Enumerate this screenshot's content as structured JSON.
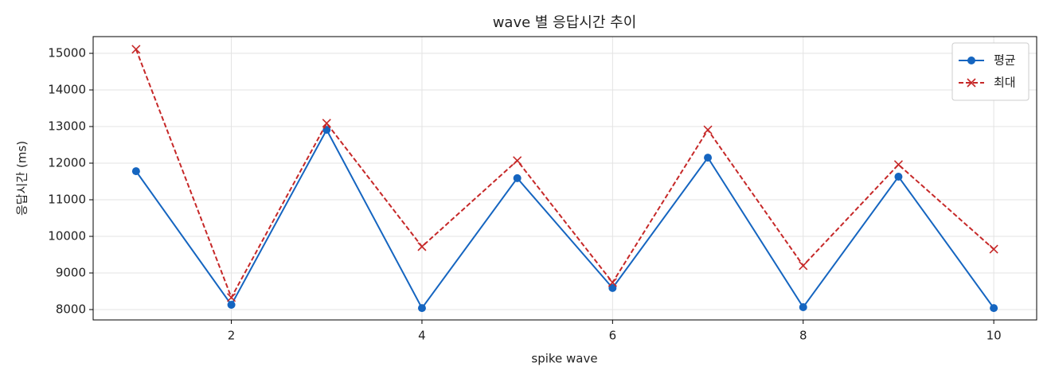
{
  "chart_data": {
    "type": "line",
    "title": "wave 별 응답시간 추이",
    "x_label": "spike wave",
    "y_label": "응답시간 (ms)",
    "x": [
      1,
      2,
      3,
      4,
      5,
      6,
      7,
      8,
      9,
      10
    ],
    "series": [
      {
        "name": "평균",
        "color": "#1565c0",
        "marker": "o",
        "linestyle": "solid",
        "values": [
          11780,
          8130,
          12910,
          8040,
          11590,
          8590,
          12150,
          8065,
          11630,
          8040
        ]
      },
      {
        "name": "최대",
        "color": "#c62828",
        "marker": "x",
        "linestyle": "dashed",
        "values": [
          15110,
          8330,
          13090,
          9720,
          12070,
          8740,
          12910,
          9200,
          11960,
          9650
        ]
      }
    ],
    "xlim": [
      0.55,
      10.45
    ],
    "ylim": [
      7717,
      15457
    ],
    "xticks": [
      2,
      4,
      6,
      8,
      10
    ],
    "yticks": [
      8000,
      9000,
      10000,
      11000,
      12000,
      13000,
      14000,
      15000
    ],
    "grid": true,
    "legend": "upper right"
  }
}
